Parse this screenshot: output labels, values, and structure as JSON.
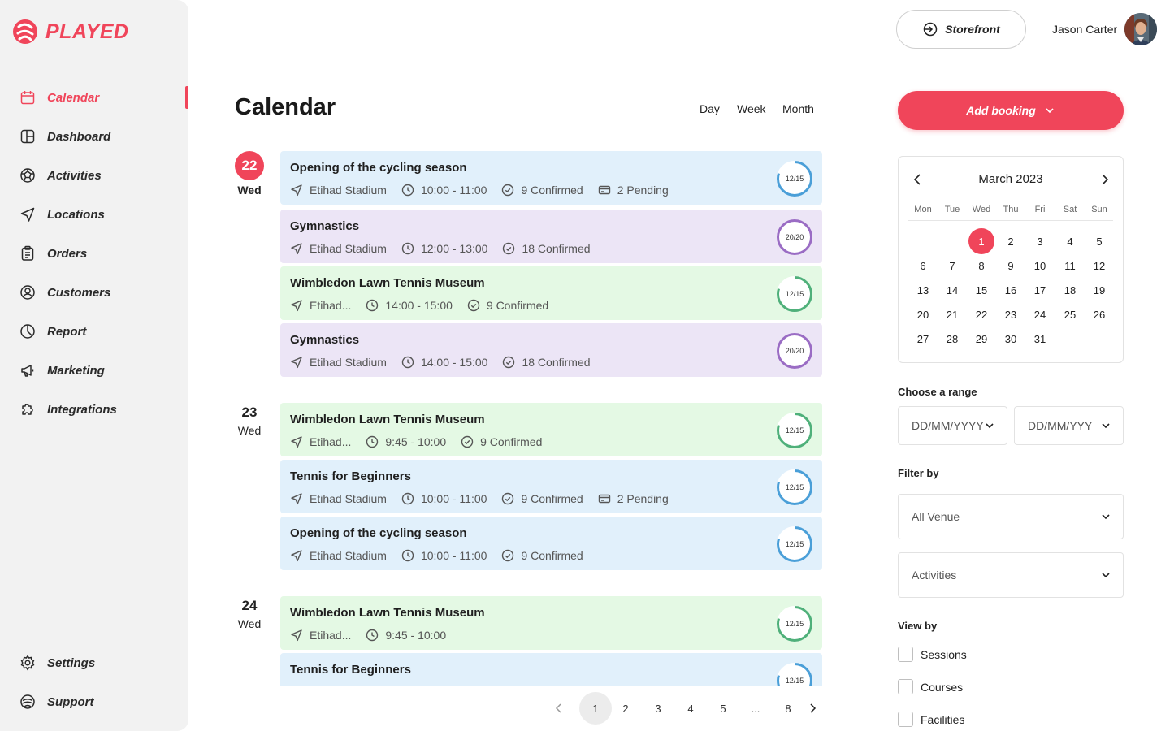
{
  "brand": {
    "name": "PLAYED",
    "color": "#f0455a"
  },
  "sidebar": {
    "items": [
      {
        "label": "Calendar",
        "icon": "calendar-icon",
        "active": true
      },
      {
        "label": "Dashboard",
        "icon": "dashboard-icon"
      },
      {
        "label": "Activities",
        "icon": "ball-icon"
      },
      {
        "label": "Locations",
        "icon": "location-arrow-icon"
      },
      {
        "label": "Orders",
        "icon": "clipboard-icon"
      },
      {
        "label": "Customers",
        "icon": "user-circle-icon"
      },
      {
        "label": "Report",
        "icon": "pie-chart-icon"
      },
      {
        "label": "Marketing",
        "icon": "megaphone-icon"
      },
      {
        "label": "Integrations",
        "icon": "puzzle-icon"
      }
    ],
    "bottom": [
      {
        "label": "Settings",
        "icon": "gear-icon"
      },
      {
        "label": "Support",
        "icon": "support-icon"
      }
    ]
  },
  "topbar": {
    "storefront_label": "Storefront",
    "user_name": "Jason Carter"
  },
  "main": {
    "title": "Calendar",
    "views": [
      "Day",
      "Week",
      "Month"
    ],
    "days": [
      {
        "num": "22",
        "name": "Wed",
        "today": true
      },
      {
        "num": "23",
        "name": "Wed",
        "today": false
      },
      {
        "num": "24",
        "name": "Wed",
        "today": false
      }
    ],
    "events": [
      {
        "title": "Opening of the cycling season",
        "venue": "Etihad Stadium",
        "time": "10:00 - 11:00",
        "confirmed": "9 Confirmed",
        "pending": "2 Pending",
        "capacity": "12/15",
        "fill": 0.8,
        "color": "blue"
      },
      {
        "title": "Gymnastics",
        "venue": "Etihad Stadium",
        "time": "12:00 - 13:00",
        "confirmed": "18 Confirmed",
        "pending": "",
        "capacity": "20/20",
        "fill": 1.0,
        "color": "purple"
      },
      {
        "title": "Wimbledon Lawn Tennis Museum",
        "venue": "Etihad...",
        "time": "14:00 - 15:00",
        "confirmed": "9 Confirmed",
        "pending": "",
        "capacity": "12/15",
        "fill": 0.8,
        "color": "green"
      },
      {
        "title": "Gymnastics",
        "venue": "Etihad Stadium",
        "time": "14:00 - 15:00",
        "confirmed": "18 Confirmed",
        "pending": "",
        "capacity": "20/20",
        "fill": 1.0,
        "color": "purple"
      },
      {
        "title": "Wimbledon Lawn Tennis Museum",
        "venue": "Etihad...",
        "time": "9:45 - 10:00",
        "confirmed": "9 Confirmed",
        "pending": "",
        "capacity": "12/15",
        "fill": 0.8,
        "color": "green"
      },
      {
        "title": "Tennis for Beginners",
        "venue": "Etihad Stadium",
        "time": "10:00 - 11:00",
        "confirmed": "9 Confirmed",
        "pending": "2 Pending",
        "capacity": "12/15",
        "fill": 0.8,
        "color": "blue"
      },
      {
        "title": "Opening of the cycling season",
        "venue": "Etihad Stadium",
        "time": "10:00 - 11:00",
        "confirmed": "9 Confirmed",
        "pending": "",
        "capacity": "12/15",
        "fill": 0.8,
        "color": "blue"
      },
      {
        "title": "Wimbledon Lawn Tennis Museum",
        "venue": "Etihad...",
        "time": "9:45 - 10:00",
        "confirmed": "",
        "pending": "",
        "capacity": "12/15",
        "fill": 0.8,
        "color": "green"
      },
      {
        "title": "Tennis for Beginners",
        "venue": "",
        "time": "",
        "confirmed": "",
        "pending": "",
        "capacity": "12/15",
        "fill": 0.8,
        "color": "blue"
      }
    ],
    "pagination": {
      "pages": [
        "1",
        "2",
        "3",
        "4",
        "5",
        "...",
        "8"
      ],
      "current": "1"
    }
  },
  "right": {
    "add_booking_label": "Add booking",
    "calendar": {
      "month_label": "March 2023",
      "weekdays": [
        "Mon",
        "Tue",
        "Wed",
        "Thu",
        "Fri",
        "Sat",
        "Sun"
      ],
      "days": [
        "1",
        "2",
        "3",
        "4",
        "5",
        "6",
        "7",
        "8",
        "9",
        "10",
        "11",
        "12",
        "13",
        "14",
        "15",
        "16",
        "17",
        "18",
        "19",
        "20",
        "21",
        "22",
        "23",
        "24",
        "25",
        "26",
        "27",
        "28",
        "29",
        "30",
        "31"
      ],
      "first_weekday_index": 2,
      "selected": "1"
    },
    "range": {
      "label": "Choose a range",
      "start_placeholder": "DD/MM/YYYY",
      "end_placeholder": "DD/MM/YYY"
    },
    "filter": {
      "label": "Filter by",
      "venue": "All Venue",
      "activities": "Activities"
    },
    "view_by": {
      "label": "View by",
      "options": [
        "Sessions",
        "Courses",
        "Facilities"
      ]
    }
  },
  "colors": {
    "accent": "#f0455a",
    "event_blue": "#e1f0fb",
    "event_purple": "#ece5f6",
    "event_green": "#e4f9e4",
    "ring_blue": "#4a9fd8",
    "ring_purple": "#9a6cc4",
    "ring_green": "#4fb07a"
  }
}
